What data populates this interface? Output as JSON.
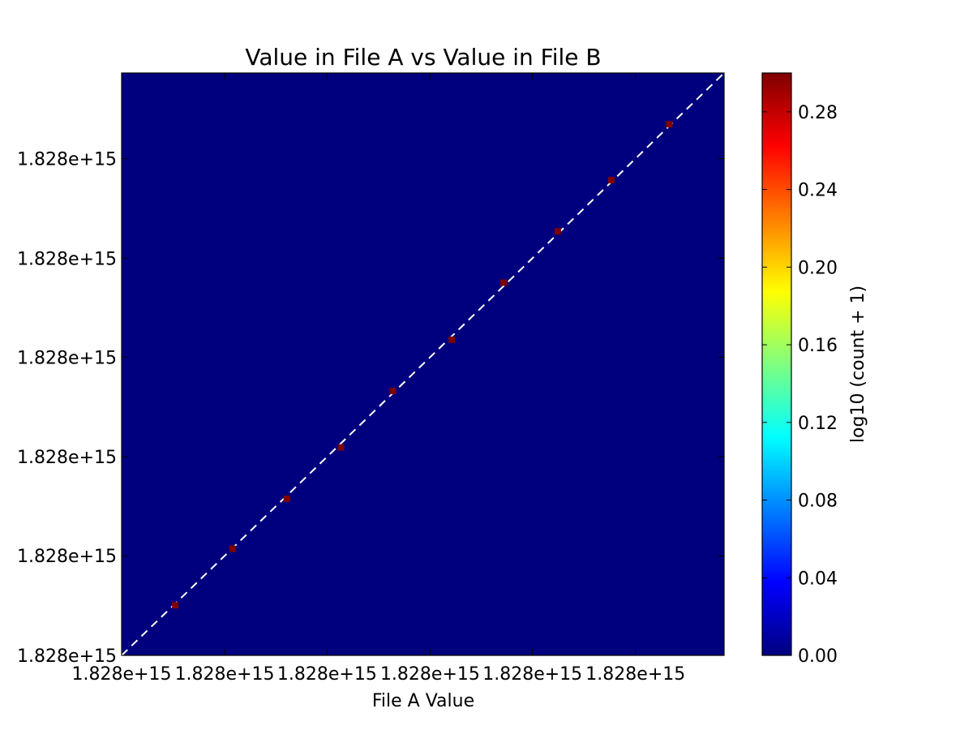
{
  "chart_data": {
    "type": "heatmap",
    "title": "Value in File A vs Value in File B",
    "xlabel": "File A Value",
    "ylabel": "",
    "x_tick_labels": [
      "1.828e+15",
      "1.828e+15",
      "1.828e+15",
      "1.828e+15",
      "1.828e+15",
      "1.828e+15"
    ],
    "y_tick_labels": [
      "1.828e+15",
      "1.828e+15",
      "1.828e+15",
      "1.828e+15",
      "1.828e+15",
      "1.828e+15"
    ],
    "xlim": [
      0,
      1
    ],
    "ylim": [
      0,
      1
    ],
    "x_ticks": [
      0,
      0.171,
      0.341,
      0.512,
      0.682,
      0.853
    ],
    "y_ticks": [
      0,
      0.171,
      0.341,
      0.512,
      0.682,
      0.853
    ],
    "points": [
      {
        "x": 0.089,
        "y": 0.086,
        "value": 0.3
      },
      {
        "x": 0.184,
        "y": 0.183,
        "value": 0.3
      },
      {
        "x": 0.274,
        "y": 0.269,
        "value": 0.3
      },
      {
        "x": 0.364,
        "y": 0.357,
        "value": 0.3
      },
      {
        "x": 0.45,
        "y": 0.454,
        "value": 0.3
      },
      {
        "x": 0.548,
        "y": 0.542,
        "value": 0.3
      },
      {
        "x": 0.634,
        "y": 0.64,
        "value": 0.3
      },
      {
        "x": 0.724,
        "y": 0.728,
        "value": 0.3
      },
      {
        "x": 0.813,
        "y": 0.816,
        "value": 0.3
      },
      {
        "x": 0.909,
        "y": 0.912,
        "value": 0.3
      }
    ],
    "reference_line": "y = x (dashed, white)",
    "grid": false,
    "colorbar": {
      "label": "log10 (count + 1)",
      "range": [
        0,
        0.3
      ],
      "ticks": [
        0.0,
        0.04,
        0.08,
        0.12,
        0.16,
        0.2,
        0.24,
        0.28
      ],
      "tick_labels": [
        "0.00",
        "0.04",
        "0.08",
        "0.12",
        "0.16",
        "0.20",
        "0.24",
        "0.28"
      ],
      "colormap": [
        "#00007f",
        "#0000ff",
        "#007fff",
        "#00ffff",
        "#7fff7f",
        "#ffff00",
        "#ff7f00",
        "#ff0000",
        "#7f0000"
      ]
    },
    "background_color": "#00007f",
    "point_color": "#7f0000",
    "line_color": "#ffffff"
  }
}
